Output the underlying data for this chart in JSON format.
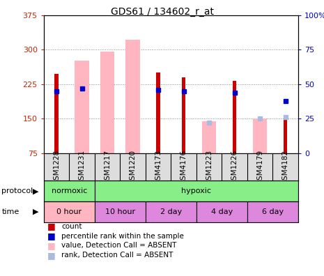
{
  "title": "GDS61 / 134602_r_at",
  "samples": [
    "GSM1228",
    "GSM1231",
    "GSM1217",
    "GSM1220",
    "GSM4173",
    "GSM4176",
    "GSM1223",
    "GSM1226",
    "GSM4179",
    "GSM4182"
  ],
  "ylim_left": [
    75,
    375
  ],
  "ylim_right": [
    0,
    100
  ],
  "yticks_left": [
    75,
    150,
    225,
    300,
    375
  ],
  "yticks_right": [
    0,
    25,
    50,
    75,
    100
  ],
  "count_values": [
    248,
    null,
    null,
    null,
    250,
    240,
    null,
    232,
    null,
    158
  ],
  "rank_pct_values": [
    45,
    47,
    null,
    null,
    46,
    45,
    null,
    44,
    null,
    38
  ],
  "absent_value_bars": [
    null,
    276,
    296,
    322,
    null,
    null,
    145,
    null,
    150,
    null
  ],
  "absent_rank_pct": [
    null,
    null,
    null,
    null,
    null,
    null,
    22,
    null,
    25,
    26
  ],
  "count_color": "#CC0000",
  "rank_color": "#0000CC",
  "absent_value_color": "#FFB6C1",
  "absent_rank_color": "#AABBDD",
  "grid_color": "#888888",
  "label_color_left": "#CC2200",
  "label_color_right": "#0000CC",
  "protocol_normoxic_color": "#88EE88",
  "protocol_hypoxic_color": "#88EE88",
  "time_0h_color": "#FFB6C1",
  "time_other_color": "#DD88DD"
}
